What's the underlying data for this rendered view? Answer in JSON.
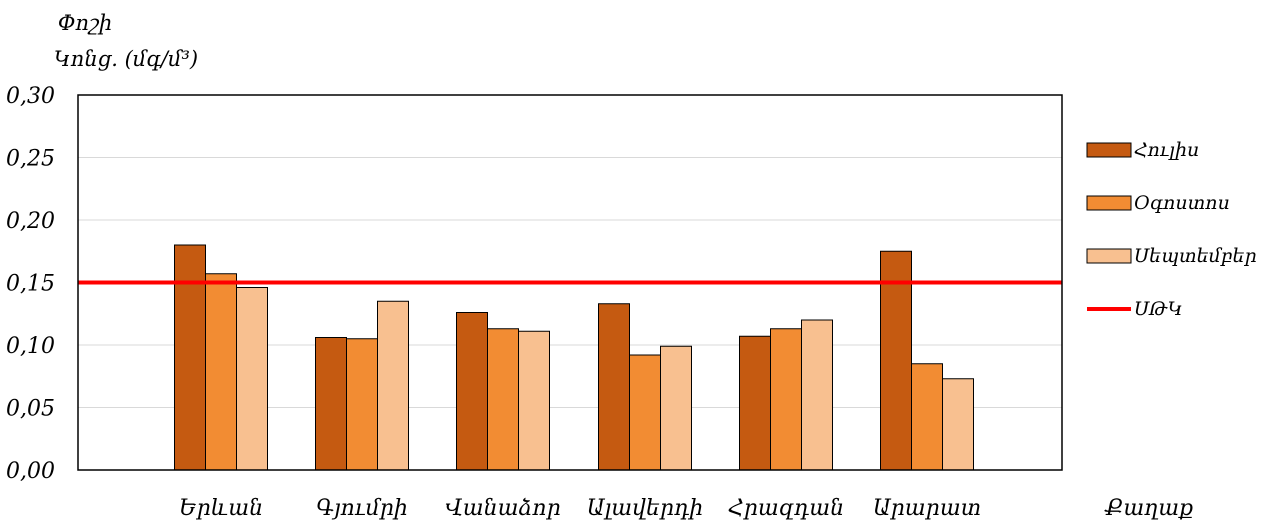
{
  "chart_data": {
    "type": "bar",
    "ylabel_line1": "Փոշի",
    "ylabel_line2": "Կոնց. (մգ/մ³)",
    "xlabel": "Քաղաք",
    "ylim": [
      0,
      0.3
    ],
    "yticks": [
      0,
      0.05,
      0.1,
      0.15,
      0.2,
      0.25,
      0.3
    ],
    "ytick_labels": [
      "0,00",
      "0,05",
      "0,10",
      "0,15",
      "0,20",
      "0,25",
      "0,30"
    ],
    "grid": true,
    "legend_position": "right",
    "categories": [
      "Երևան",
      "Գյումրի",
      "Վանաձոր",
      "Ալավերդի",
      "Հրազդան",
      "Արարատ"
    ],
    "series": [
      {
        "name": "Հուլիս",
        "color": "#c55a11",
        "values": [
          0.18,
          0.106,
          0.126,
          0.133,
          0.107,
          0.175
        ]
      },
      {
        "name": "Օգոստոս",
        "color": "#f28c33",
        "values": [
          0.157,
          0.105,
          0.113,
          0.092,
          0.113,
          0.085
        ]
      },
      {
        "name": "Սեպտեմբեր",
        "color": "#f8c090",
        "values": [
          0.146,
          0.135,
          0.111,
          0.099,
          0.12,
          0.073
        ]
      }
    ],
    "reference_line": {
      "name": "ՍԹԿ",
      "value": 0.15,
      "color": "#ff0000"
    }
  }
}
